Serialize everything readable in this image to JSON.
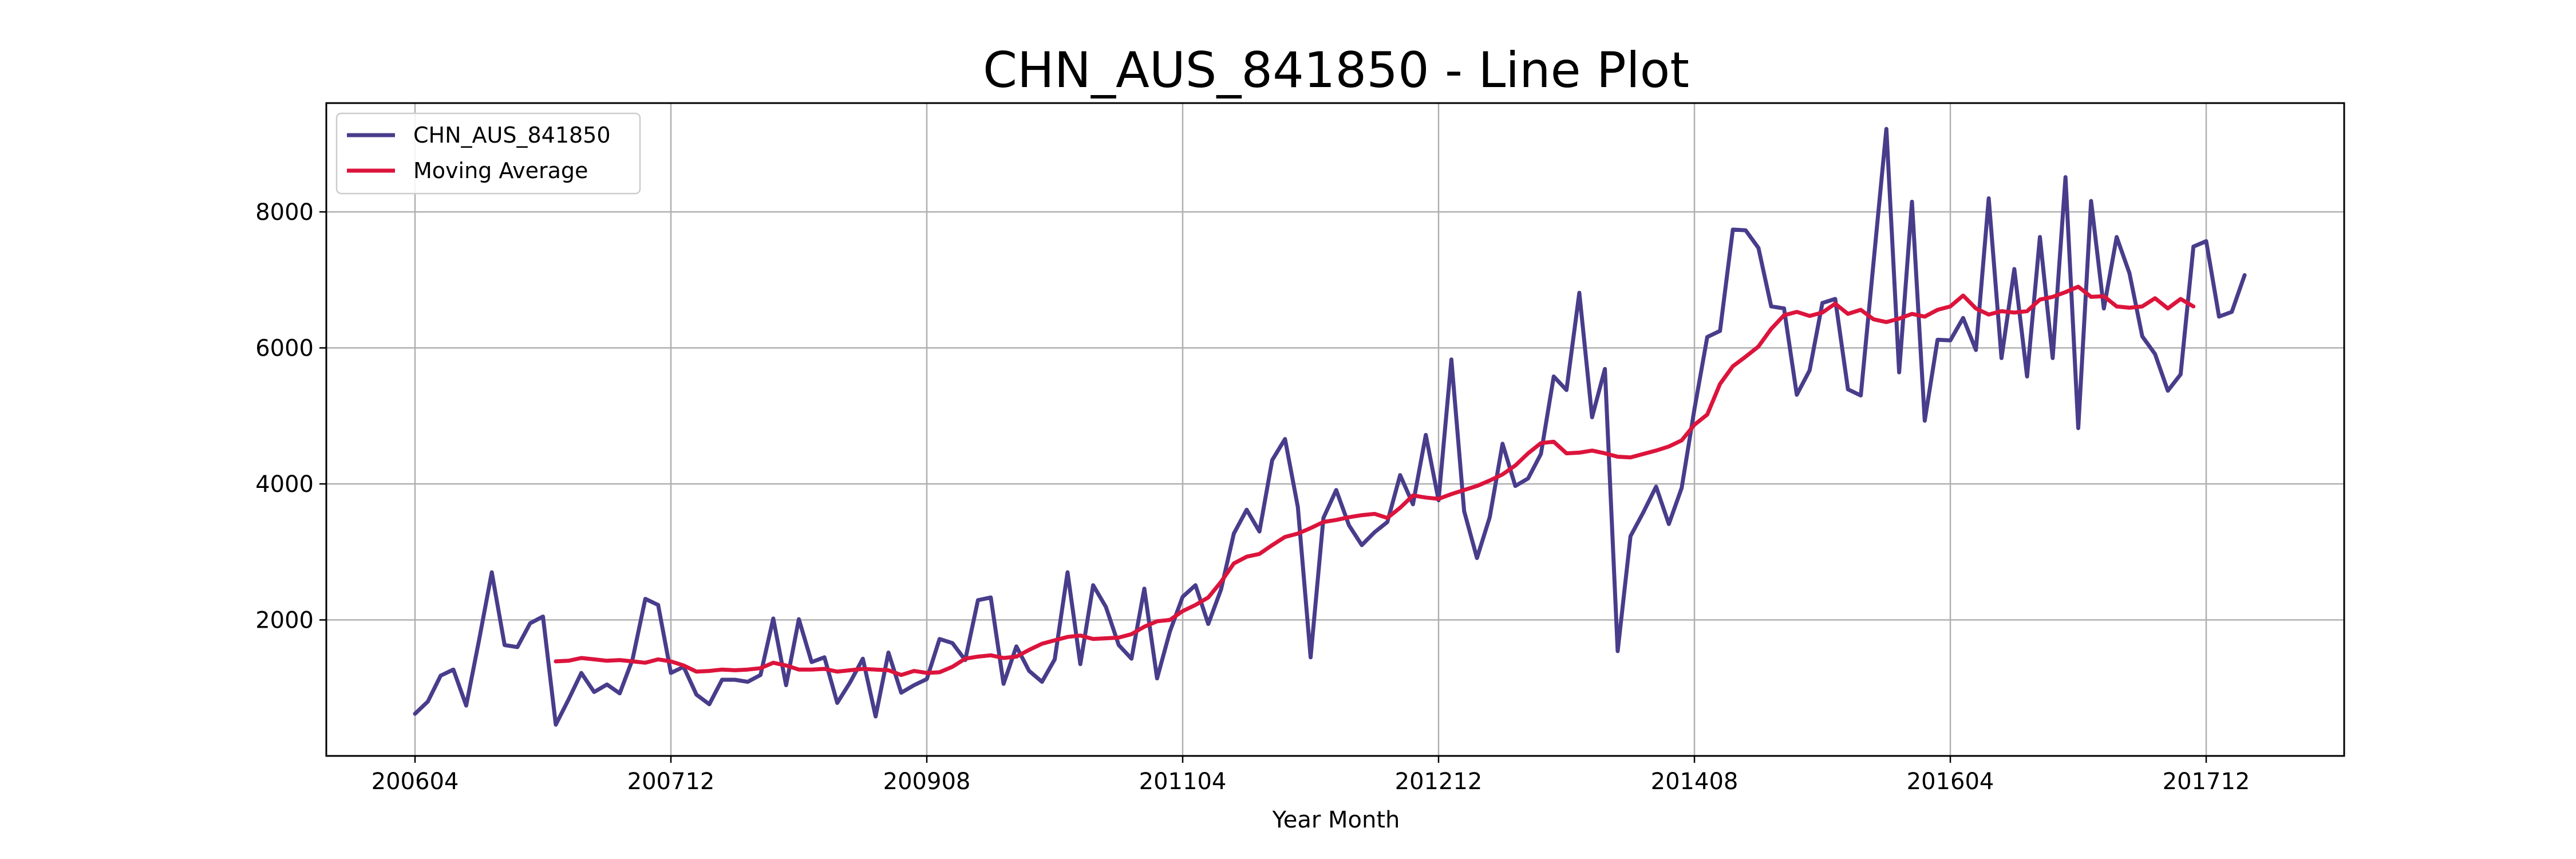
{
  "chart_data": {
    "type": "line",
    "title": "CHN_AUS_841850 - Line Plot",
    "xlabel": "Year Month",
    "ylabel": "",
    "x_ticks": [
      "200604",
      "200712",
      "200908",
      "201104",
      "201212",
      "201408",
      "201604",
      "201712"
    ],
    "y_ticks": [
      2000,
      4000,
      6000,
      8000
    ],
    "ylim": [
      0,
      9600
    ],
    "grid": true,
    "legend_position": "top-left",
    "x_start": "2006-04",
    "series": [
      {
        "name": "CHN_AUS_841850",
        "color": "#483d8b",
        "values": [
          620,
          800,
          1180,
          1270,
          740,
          1700,
          2700,
          1630,
          1600,
          1950,
          2050,
          460,
          830,
          1220,
          940,
          1050,
          920,
          1420,
          2310,
          2220,
          1220,
          1310,
          900,
          760,
          1120,
          1120,
          1090,
          1190,
          2020,
          1040,
          2010,
          1380,
          1450,
          780,
          1080,
          1430,
          580,
          1520,
          930,
          1040,
          1130,
          1720,
          1660,
          1410,
          2290,
          2330,
          1060,
          1610,
          1250,
          1090,
          1420,
          2700,
          1350,
          2510,
          2190,
          1630,
          1430,
          2460,
          1140,
          1830,
          2340,
          2510,
          1940,
          2450,
          3270,
          3620,
          3300,
          4350,
          4660,
          3660,
          1450,
          3500,
          3910,
          3390,
          3100,
          3290,
          3440,
          4130,
          3700,
          4720,
          3760,
          5830,
          3600,
          2910,
          3510,
          4590,
          3970,
          4080,
          4440,
          5580,
          5380,
          6810,
          4980,
          5690,
          1540,
          3230,
          3580,
          3960,
          3410,
          3940,
          5100,
          6160,
          6250,
          7740,
          7730,
          7470,
          6610,
          6580,
          5310,
          5670,
          6660,
          6720,
          5390,
          5300,
          7260,
          9220,
          5640,
          8150,
          4930,
          6120,
          6110,
          6440,
          5970,
          8200,
          5850,
          7160,
          5580,
          7630,
          5850,
          8510,
          4820,
          8160,
          6580,
          7630,
          7100,
          6170,
          5910,
          5370,
          5610,
          7490,
          7570,
          6460,
          6530,
          7070
        ]
      },
      {
        "name": "Moving Average",
        "color": "#dc143c",
        "start_index": 11,
        "values": [
          1390,
          1400,
          1440,
          1420,
          1400,
          1410,
          1390,
          1370,
          1420,
          1390,
          1330,
          1240,
          1250,
          1270,
          1260,
          1270,
          1290,
          1370,
          1330,
          1270,
          1270,
          1280,
          1240,
          1260,
          1280,
          1270,
          1260,
          1190,
          1250,
          1220,
          1230,
          1310,
          1430,
          1460,
          1480,
          1440,
          1460,
          1560,
          1650,
          1700,
          1750,
          1770,
          1720,
          1730,
          1740,
          1790,
          1900,
          1980,
          2000,
          2130,
          2220,
          2330,
          2560,
          2830,
          2930,
          2970,
          3100,
          3220,
          3270,
          3350,
          3440,
          3470,
          3510,
          3540,
          3560,
          3500,
          3650,
          3830,
          3800,
          3780,
          3850,
          3910,
          3970,
          4050,
          4140,
          4270,
          4450,
          4600,
          4620,
          4450,
          4460,
          4490,
          4450,
          4400,
          4390,
          4440,
          4490,
          4550,
          4640,
          4870,
          5020,
          5470,
          5730,
          5870,
          6020,
          6280,
          6480,
          6530,
          6470,
          6520,
          6650,
          6500,
          6560,
          6420,
          6380,
          6430,
          6500,
          6460,
          6560,
          6610,
          6770,
          6580,
          6490,
          6540,
          6520,
          6540,
          6710,
          6750,
          6820,
          6900,
          6750,
          6760,
          6610,
          6590,
          6610,
          6730,
          6580,
          6720,
          6610
        ]
      }
    ]
  }
}
